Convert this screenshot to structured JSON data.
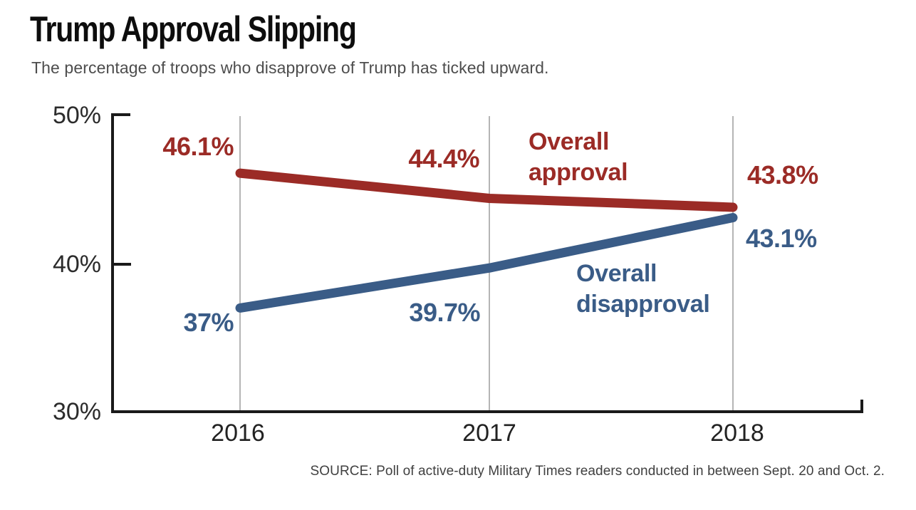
{
  "chart_data": {
    "type": "line",
    "title": "Trump Approval Slipping",
    "subtitle": "The percentage of troops who disapprove of Trump has ticked upward.",
    "categories": [
      "2016",
      "2017",
      "2018"
    ],
    "series": [
      {
        "name": "Overall approval",
        "color": "#9B2B26",
        "values": [
          46.1,
          44.4,
          43.8
        ],
        "point_labels": [
          "46.1%",
          "44.4%",
          "43.8%"
        ]
      },
      {
        "name": "Overall disapproval",
        "color": "#3A5C87",
        "values": [
          37,
          39.7,
          43.1
        ],
        "point_labels": [
          "37%",
          "39.7%",
          "43.1%"
        ]
      }
    ],
    "ylim": [
      30,
      50
    ],
    "yticks": [
      {
        "value": 50,
        "label": "50%"
      },
      {
        "value": 40,
        "label": "40%"
      },
      {
        "value": 30,
        "label": "30%"
      }
    ],
    "grid": "vertical gridline at each year",
    "legend_position": "inline annotations beside lines",
    "axis_color": "#1a1a1a",
    "gridline_color": "#b5b5b5",
    "source": "SOURCE: Poll of active-duty Military Times readers conducted in between Sept. 20 and Oct. 2."
  }
}
